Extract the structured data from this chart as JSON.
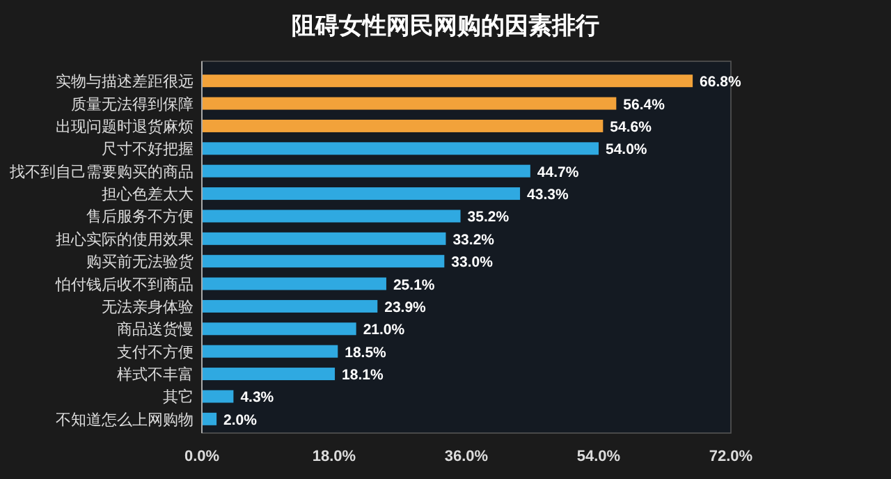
{
  "chart_data": {
    "type": "bar",
    "orientation": "horizontal",
    "title": "阻碍女性网民网购的因素排行",
    "categories": [
      "实物与描述差距很远",
      "质量无法得到保障",
      "出现问题时退货麻烦",
      "尺寸不好把握",
      "找不到自己需要购买的商品",
      "担心色差太大",
      "售后服务不方便",
      "担心实际的使用效果",
      "购买前无法验货",
      "怕付钱后收不到商品",
      "无法亲身体验",
      "商品送货慢",
      "支付不方便",
      "样式不丰富",
      "其它",
      "不知道怎么上网购物"
    ],
    "values": [
      66.8,
      56.4,
      54.6,
      54.0,
      44.7,
      43.3,
      35.2,
      33.2,
      33.0,
      25.1,
      23.9,
      21.0,
      18.5,
      18.1,
      4.3,
      2.0
    ],
    "value_labels": [
      "66.8%",
      "56.4%",
      "54.6%",
      "54.0%",
      "44.7%",
      "43.3%",
      "35.2%",
      "33.2%",
      "33.0%",
      "25.1%",
      "23.9%",
      "21.0%",
      "18.5%",
      "18.1%",
      "4.3%",
      "2.0%"
    ],
    "colors": [
      "#f2a23a",
      "#f2a23a",
      "#f2a23a",
      "#2fa9e1",
      "#2fa9e1",
      "#2fa9e1",
      "#2fa9e1",
      "#2fa9e1",
      "#2fa9e1",
      "#2fa9e1",
      "#2fa9e1",
      "#2fa9e1",
      "#2fa9e1",
      "#2fa9e1",
      "#2fa9e1",
      "#2fa9e1"
    ],
    "xlim": [
      0,
      72
    ],
    "xticks": [
      {
        "value": 0,
        "label": "0.0%"
      },
      {
        "value": 18,
        "label": "18.0%"
      },
      {
        "value": 36,
        "label": "36.0%"
      },
      {
        "value": 54,
        "label": "54.0%"
      },
      {
        "value": 72,
        "label": "72.0%"
      }
    ],
    "grid": false
  }
}
